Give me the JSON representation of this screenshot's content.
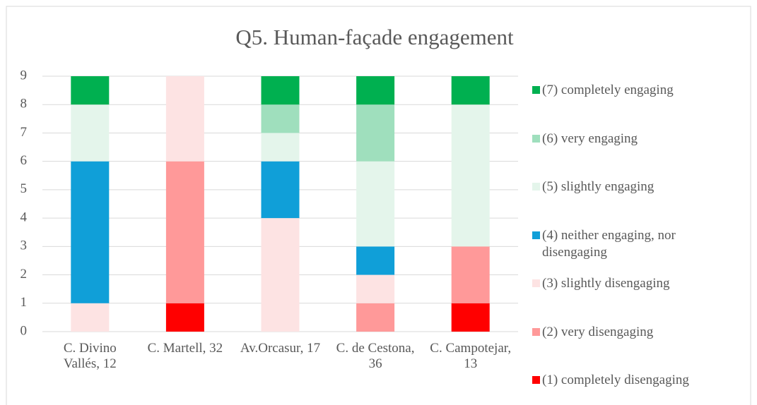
{
  "chart_data": {
    "type": "stacked_bar",
    "title": "Q5. Human-façade engagement",
    "categories": [
      "C. Divino Vallés, 12",
      "C. Martell, 32",
      "Av.Orcasur, 17",
      "C. de Cestona, 36",
      "C. Campotejar, 13"
    ],
    "series": [
      {
        "name": "(1) completely disengaging",
        "color": "#ff0000",
        "values": [
          0,
          1,
          0,
          0,
          1
        ]
      },
      {
        "name": "(2) very disengaging",
        "color": "#ff9999",
        "values": [
          0,
          5,
          0,
          1,
          2
        ]
      },
      {
        "name": "(3) slightly disengaging",
        "color": "#fde3e3",
        "values": [
          1,
          3,
          4,
          1,
          0
        ]
      },
      {
        "name": "(4) neither engaging, nor disengaging",
        "color": "#109fd8",
        "values": [
          5,
          0,
          2,
          1,
          0
        ]
      },
      {
        "name": "(5) slightly engaging",
        "color": "#e4f5eb",
        "values": [
          2,
          0,
          1,
          3,
          5
        ]
      },
      {
        "name": "(6) very engaging",
        "color": "#9fdfbd",
        "values": [
          0,
          0,
          1,
          2,
          0
        ]
      },
      {
        "name": "(7) completely engaging",
        "color": "#00b050",
        "values": [
          1,
          0,
          1,
          1,
          1
        ]
      }
    ],
    "ylim": [
      0,
      9
    ],
    "yticks": [
      0,
      1,
      2,
      3,
      4,
      5,
      6,
      7,
      8,
      9
    ],
    "grid": true,
    "legend": "right"
  }
}
